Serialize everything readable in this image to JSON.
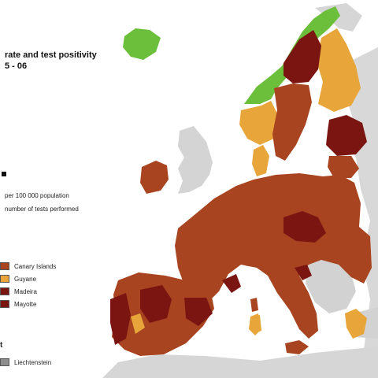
{
  "title": {
    "line1": "rate and test positivity",
    "line2": "5 - 06"
  },
  "notes": {
    "population": "per 100 000 population",
    "tests": "number of tests performed"
  },
  "legend": [
    {
      "label": "Canary Islands",
      "color": "#a84520"
    },
    {
      "label": "Guyane",
      "color": "#e8a53a"
    },
    {
      "label": "Madeira",
      "color": "#7a1512"
    },
    {
      "label": "Mayotte",
      "color": "#7a1512"
    }
  ],
  "no_data": {
    "fragment": "t",
    "label": "Liechtenstein",
    "color": "#8c8c8c"
  },
  "colors": {
    "dark_red": "#7a1512",
    "red": "#a84520",
    "orange": "#e8a53a",
    "green": "#6cbf3a",
    "grey": "#d0d0d0",
    "sea": "#ffffff"
  }
}
